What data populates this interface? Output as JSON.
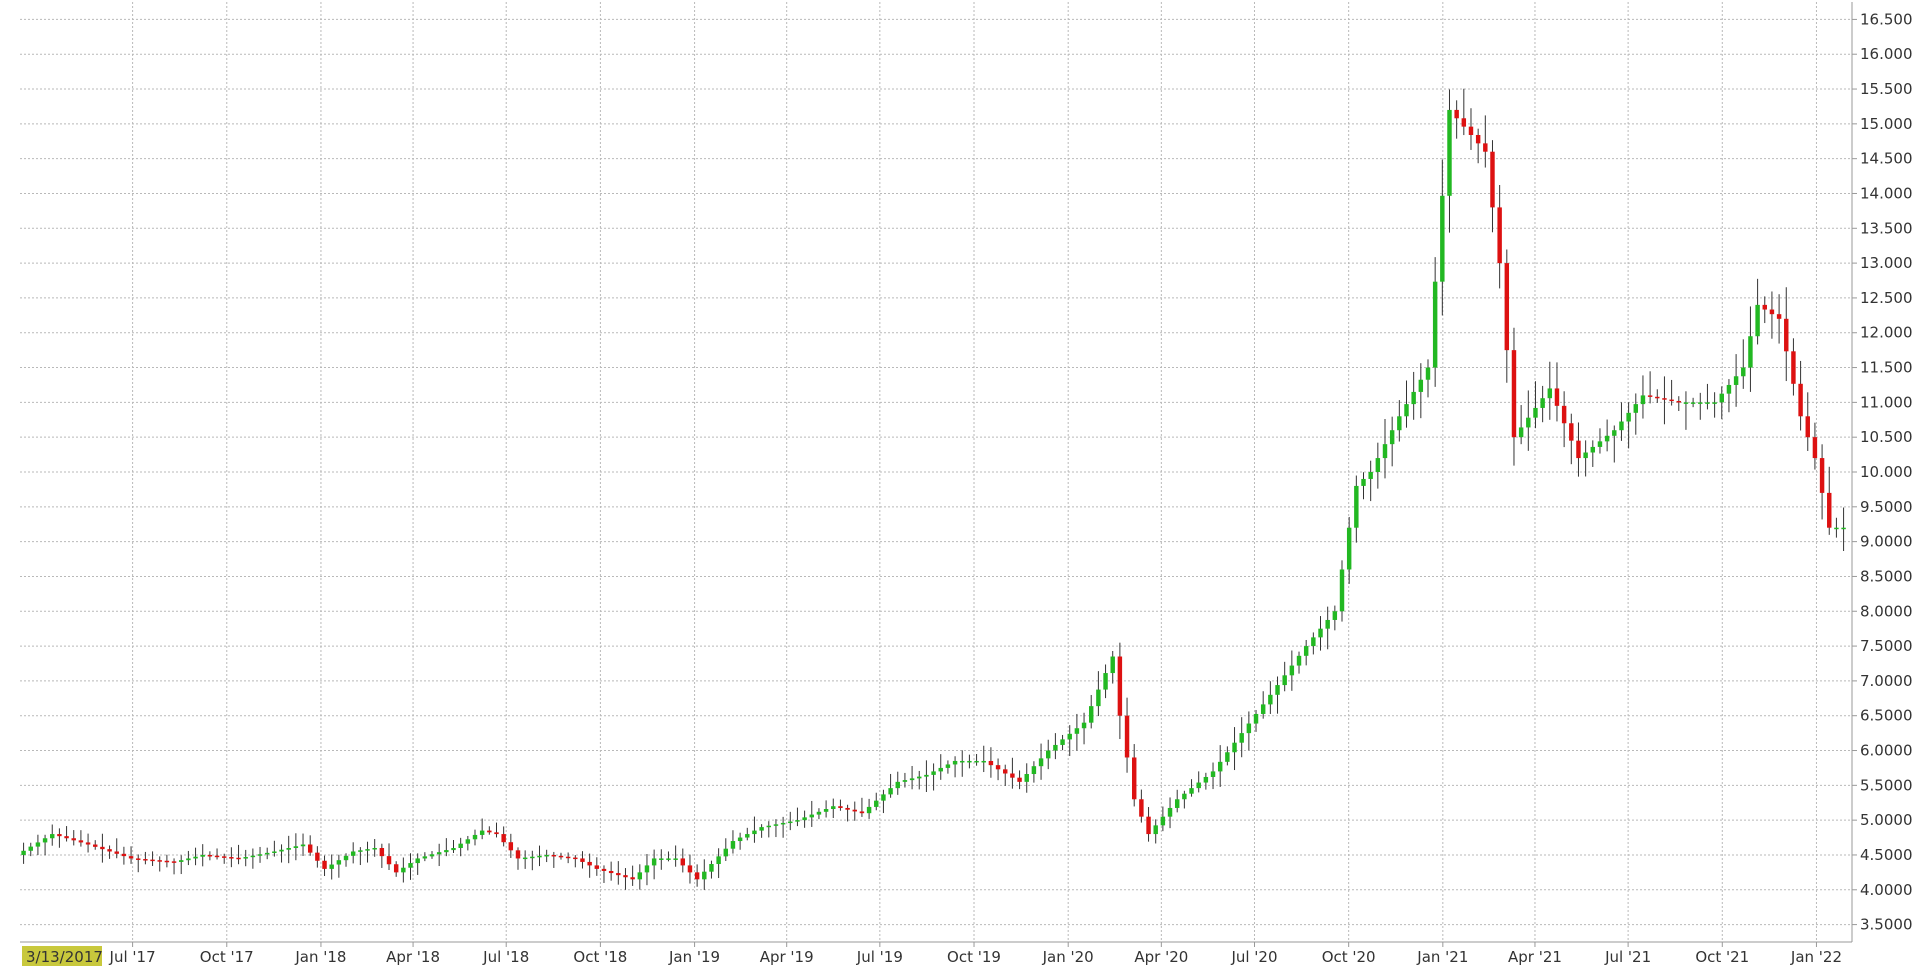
{
  "chart_data": {
    "type": "candlestick",
    "title": "",
    "xlabel": "",
    "ylabel": "",
    "ylim": [
      3.25,
      16.75
    ],
    "grid": true,
    "y_axis_side": "right",
    "y_ticks": [
      "3.5000",
      "4.0000",
      "4.5000",
      "5.0000",
      "5.5000",
      "6.0000",
      "6.5000",
      "7.0000",
      "7.5000",
      "8.0000",
      "8.5000",
      "9.0000",
      "9.5000",
      "10.000",
      "10.500",
      "11.000",
      "11.500",
      "12.000",
      "12.500",
      "13.000",
      "13.500",
      "14.000",
      "14.500",
      "15.000",
      "15.500",
      "16.000",
      "16.500"
    ],
    "x_start_label": "3/13/2017",
    "x_ticks": [
      "Jul '17",
      "Oct '17",
      "Jan '18",
      "Apr '18",
      "Jul '18",
      "Oct '18",
      "Jan '19",
      "Apr '19",
      "Jul '19",
      "Oct '19",
      "Jan '20",
      "Apr '20",
      "Jul '20",
      "Oct '20",
      "Jan '21",
      "Apr '21",
      "Jul '21",
      "Oct '21",
      "Jan '22"
    ],
    "colors": {
      "up": "#22b822",
      "down": "#dd1111",
      "grid": "#b9b9b9",
      "start_label_bg": "#c8c83c"
    },
    "keypoints": [
      [
        "2017-03-13",
        4.5
      ],
      [
        "2017-04-17",
        4.8
      ],
      [
        "2017-05-22",
        4.65
      ],
      [
        "2017-07-03",
        4.45
      ],
      [
        "2017-08-14",
        4.4
      ],
      [
        "2017-09-11",
        4.5
      ],
      [
        "2017-10-16",
        4.45
      ],
      [
        "2017-11-20",
        4.55
      ],
      [
        "2017-12-18",
        4.65
      ],
      [
        "2018-01-08",
        4.3
      ],
      [
        "2018-02-05",
        4.55
      ],
      [
        "2018-02-26",
        4.6
      ],
      [
        "2018-03-19",
        4.25
      ],
      [
        "2018-04-09",
        4.45
      ],
      [
        "2018-05-14",
        4.6
      ],
      [
        "2018-06-11",
        4.85
      ],
      [
        "2018-06-25",
        4.8
      ],
      [
        "2018-07-16",
        4.45
      ],
      [
        "2018-08-13",
        4.5
      ],
      [
        "2018-09-10",
        4.45
      ],
      [
        "2018-10-01",
        4.3
      ],
      [
        "2018-11-05",
        4.15
      ],
      [
        "2018-11-26",
        4.45
      ],
      [
        "2018-12-17",
        4.45
      ],
      [
        "2019-01-07",
        4.15
      ],
      [
        "2019-02-11",
        4.7
      ],
      [
        "2019-03-11",
        4.9
      ],
      [
        "2019-04-15",
        5.0
      ],
      [
        "2019-05-20",
        5.2
      ],
      [
        "2019-06-17",
        5.1
      ],
      [
        "2019-07-22",
        5.55
      ],
      [
        "2019-08-19",
        5.65
      ],
      [
        "2019-09-16",
        5.85
      ],
      [
        "2019-10-14",
        5.85
      ],
      [
        "2019-11-18",
        5.55
      ],
      [
        "2019-12-16",
        6.0
      ],
      [
        "2020-01-20",
        6.4
      ],
      [
        "2020-02-17",
        7.35
      ],
      [
        "2020-02-24",
        6.5
      ],
      [
        "2020-03-09",
        5.3
      ],
      [
        "2020-03-23",
        4.8
      ],
      [
        "2020-04-20",
        5.3
      ],
      [
        "2020-05-25",
        5.7
      ],
      [
        "2020-06-22",
        6.25
      ],
      [
        "2020-07-20",
        6.8
      ],
      [
        "2020-08-24",
        7.5
      ],
      [
        "2020-09-21",
        8.0
      ],
      [
        "2020-10-12",
        9.8
      ],
      [
        "2020-10-26",
        10.0
      ],
      [
        "2020-11-23",
        10.8
      ],
      [
        "2020-12-21",
        11.5
      ],
      [
        "2021-01-11",
        15.2
      ],
      [
        "2021-02-15",
        14.6
      ],
      [
        "2021-03-01",
        13.0
      ],
      [
        "2021-03-15",
        10.5
      ],
      [
        "2021-04-19",
        11.2
      ],
      [
        "2021-05-17",
        10.2
      ],
      [
        "2021-06-21",
        10.6
      ],
      [
        "2021-07-19",
        11.1
      ],
      [
        "2021-08-23",
        11.0
      ],
      [
        "2021-09-27",
        11.0
      ],
      [
        "2021-10-25",
        11.5
      ],
      [
        "2021-11-08",
        12.4
      ],
      [
        "2021-11-29",
        12.2
      ],
      [
        "2021-12-20",
        10.8
      ],
      [
        "2022-01-03",
        10.2
      ],
      [
        "2022-01-17",
        9.2
      ]
    ]
  }
}
